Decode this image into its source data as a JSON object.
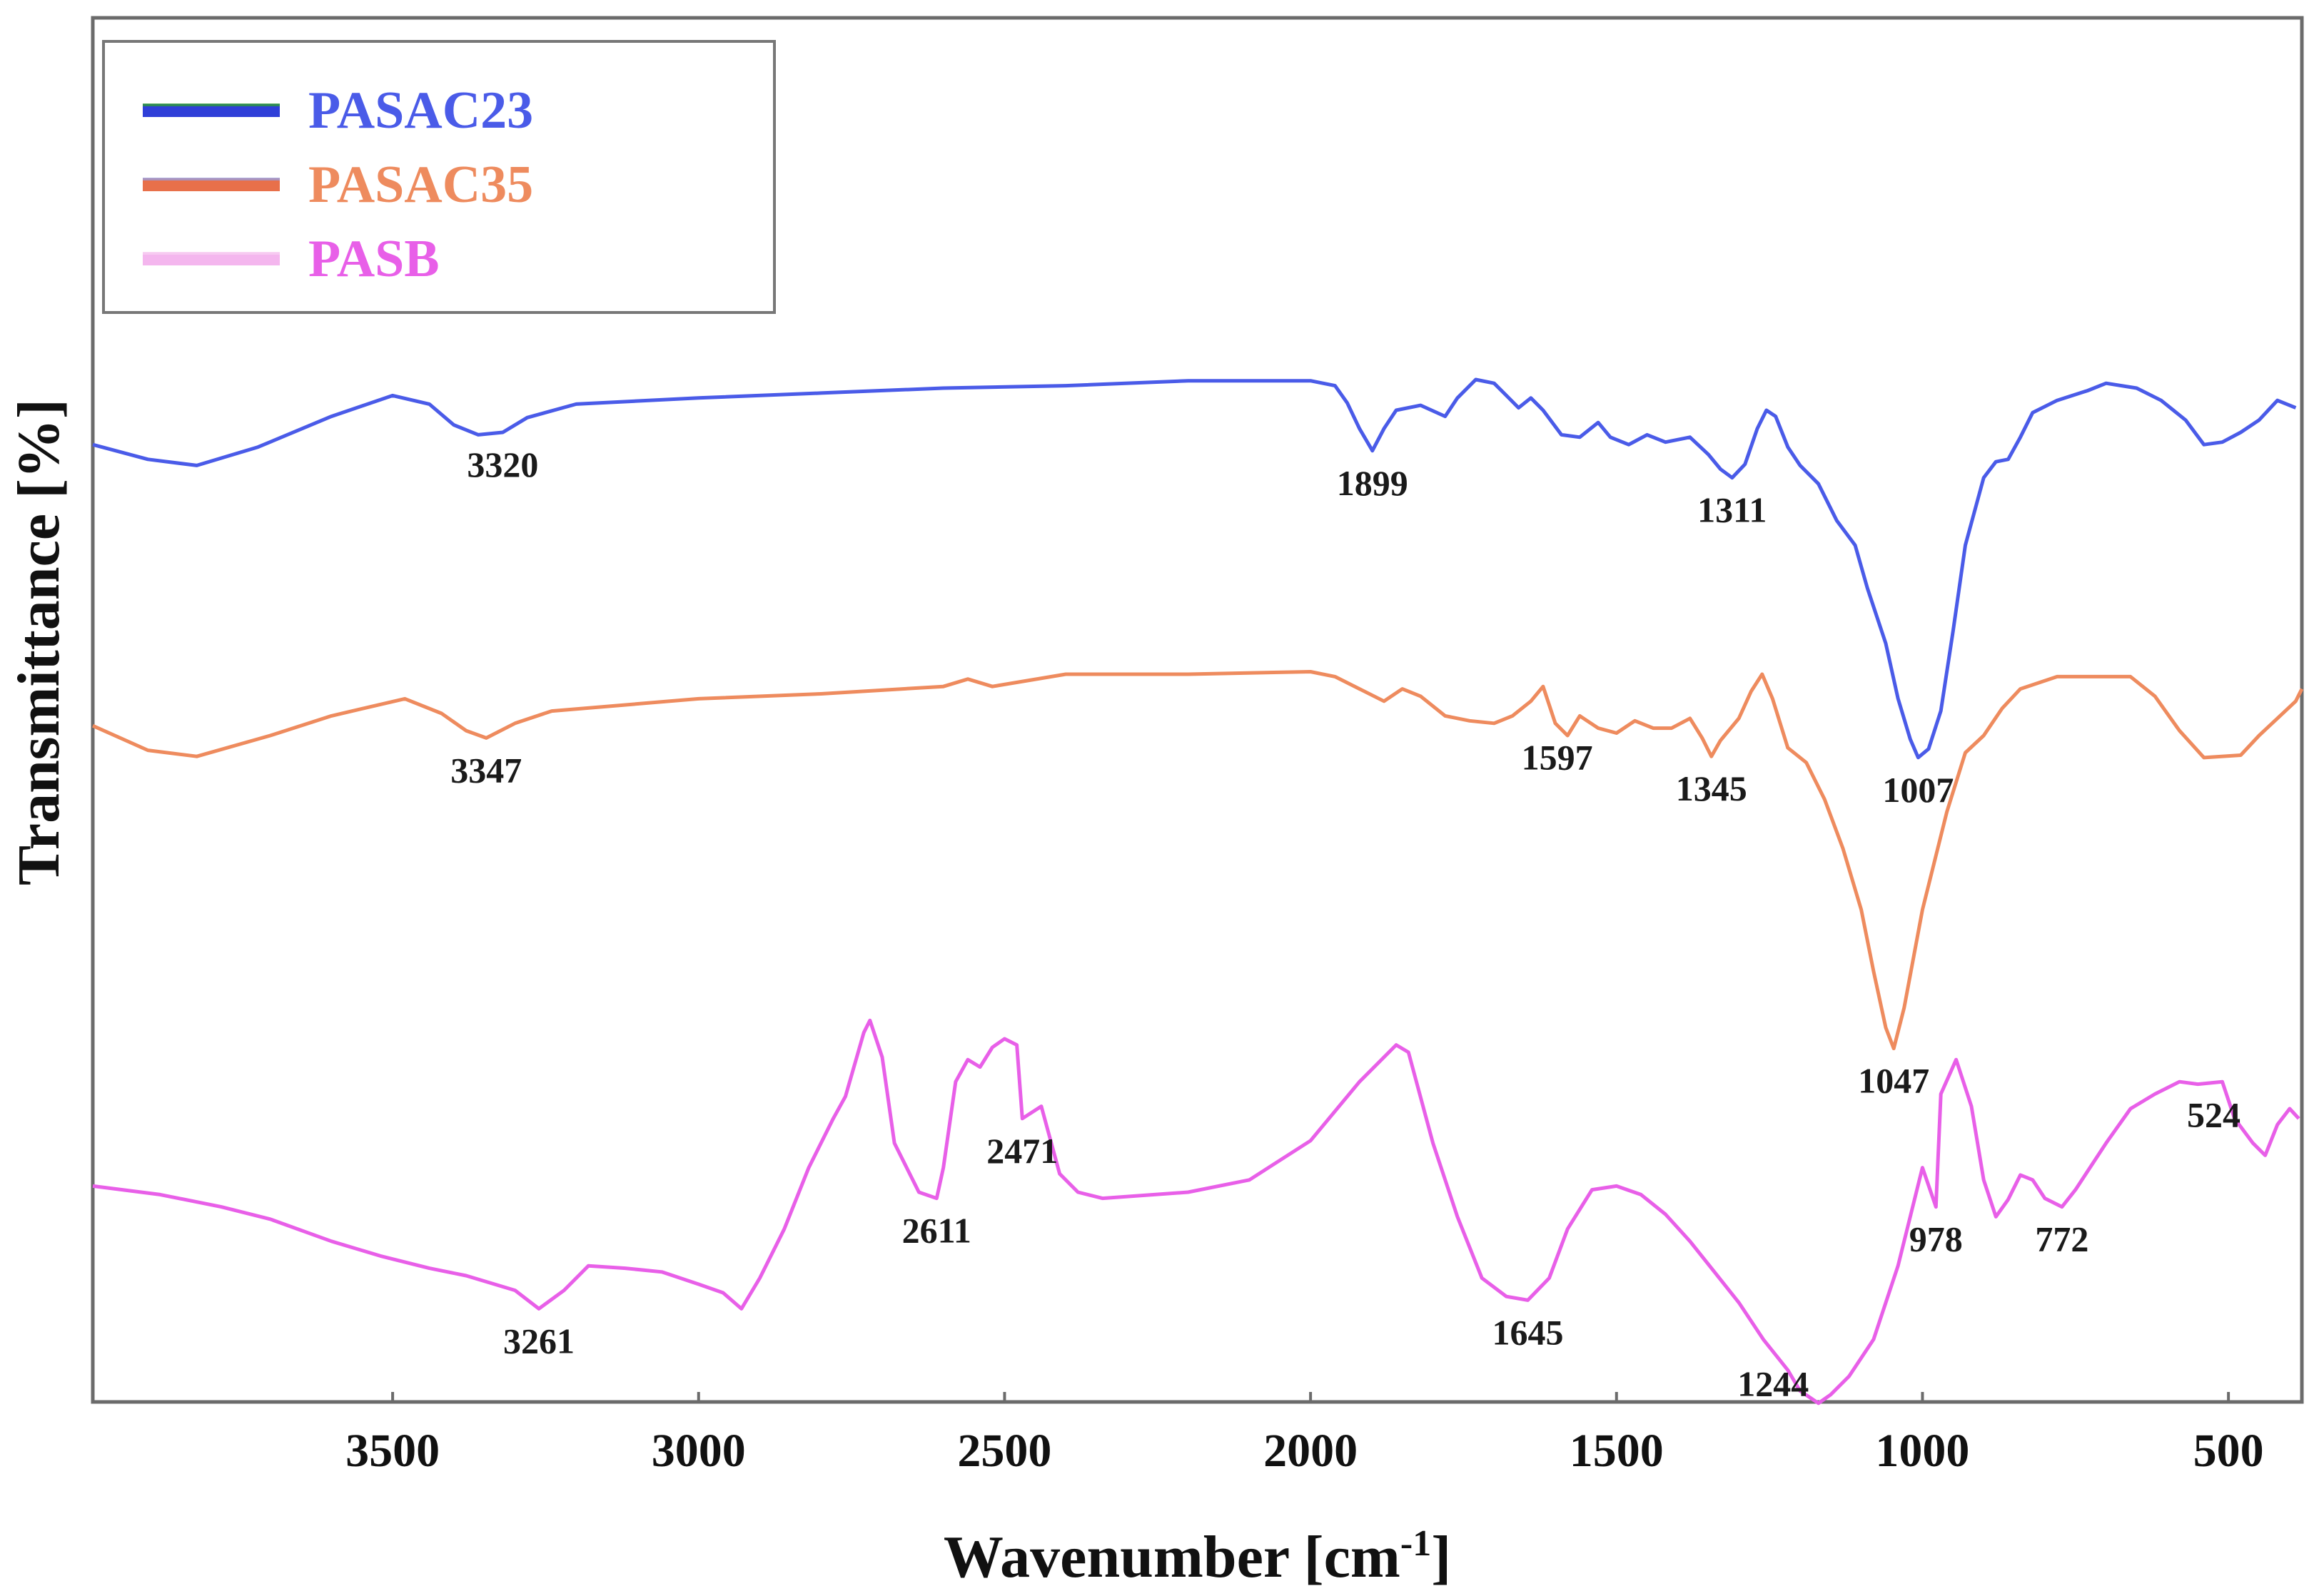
{
  "chart_data": {
    "type": "line",
    "title": "",
    "xlabel": "Wavenumber [cm",
    "xlabel_sup": "-1",
    "xlabel_tail": "]",
    "ylabel": "Transmittance [%]",
    "xlim": [
      3990,
      380
    ],
    "x_ticks": [
      3500,
      3000,
      2500,
      2000,
      1500,
      1000,
      500
    ],
    "grid": false,
    "legend_position": "top-left",
    "series": [
      {
        "name": "PASAC23",
        "color": "#4a5be8",
        "legend_color": "#2f3fd8",
        "legend_accent": "#2e9b3a",
        "offset": 0,
        "points": [
          [
            3990,
            -28
          ],
          [
            3900,
            -40
          ],
          [
            3820,
            -45
          ],
          [
            3720,
            -30
          ],
          [
            3600,
            -5
          ],
          [
            3500,
            12
          ],
          [
            3440,
            5
          ],
          [
            3400,
            -12
          ],
          [
            3360,
            -20
          ],
          [
            3320,
            -18
          ],
          [
            3280,
            -6
          ],
          [
            3200,
            5
          ],
          [
            3000,
            10
          ],
          [
            2800,
            14
          ],
          [
            2600,
            18
          ],
          [
            2400,
            20
          ],
          [
            2200,
            24
          ],
          [
            2000,
            24
          ],
          [
            1960,
            20
          ],
          [
            1940,
            6
          ],
          [
            1920,
            -15
          ],
          [
            1900,
            -32
          ],
          [
            1899,
            -33
          ],
          [
            1880,
            -15
          ],
          [
            1860,
            0
          ],
          [
            1820,
            4
          ],
          [
            1780,
            -5
          ],
          [
            1760,
            10
          ],
          [
            1730,
            25
          ],
          [
            1700,
            22
          ],
          [
            1680,
            12
          ],
          [
            1660,
            2
          ],
          [
            1640,
            10
          ],
          [
            1620,
            0
          ],
          [
            1590,
            -20
          ],
          [
            1560,
            -22
          ],
          [
            1530,
            -10
          ],
          [
            1510,
            -22
          ],
          [
            1480,
            -28
          ],
          [
            1450,
            -20
          ],
          [
            1420,
            -26
          ],
          [
            1380,
            -22
          ],
          [
            1350,
            -36
          ],
          [
            1330,
            -48
          ],
          [
            1311,
            -55
          ],
          [
            1290,
            -44
          ],
          [
            1270,
            -15
          ],
          [
            1255,
            0
          ],
          [
            1240,
            -5
          ],
          [
            1220,
            -30
          ],
          [
            1200,
            -45
          ],
          [
            1170,
            -60
          ],
          [
            1140,
            -90
          ],
          [
            1110,
            -110
          ],
          [
            1090,
            -145
          ],
          [
            1060,
            -190
          ],
          [
            1040,
            -235
          ],
          [
            1020,
            -268
          ],
          [
            1007,
            -283
          ],
          [
            990,
            -276
          ],
          [
            970,
            -245
          ],
          [
            950,
            -180
          ],
          [
            930,
            -110
          ],
          [
            900,
            -55
          ],
          [
            880,
            -42
          ],
          [
            860,
            -40
          ],
          [
            840,
            -22
          ],
          [
            820,
            -2
          ],
          [
            780,
            8
          ],
          [
            730,
            16
          ],
          [
            700,
            22
          ],
          [
            650,
            18
          ],
          [
            610,
            8
          ],
          [
            570,
            -8
          ],
          [
            540,
            -28
          ],
          [
            510,
            -26
          ],
          [
            480,
            -18
          ],
          [
            450,
            -8
          ],
          [
            420,
            8
          ],
          [
            390,
            2
          ]
        ]
      },
      {
        "name": "PASAC35",
        "color": "#ee8b5e",
        "legend_color": "#e8704a",
        "legend_accent": "#9b9bd8",
        "offset": 0,
        "points": [
          [
            3990,
            -10
          ],
          [
            3900,
            -30
          ],
          [
            3820,
            -35
          ],
          [
            3700,
            -18
          ],
          [
            3600,
            -2
          ],
          [
            3480,
            12
          ],
          [
            3420,
            0
          ],
          [
            3380,
            -14
          ],
          [
            3347,
            -20
          ],
          [
            3300,
            -8
          ],
          [
            3240,
            2
          ],
          [
            3000,
            12
          ],
          [
            2800,
            16
          ],
          [
            2600,
            22
          ],
          [
            2560,
            28
          ],
          [
            2520,
            22
          ],
          [
            2400,
            32
          ],
          [
            2200,
            32
          ],
          [
            2000,
            34
          ],
          [
            1960,
            30
          ],
          [
            1920,
            20
          ],
          [
            1880,
            10
          ],
          [
            1850,
            20
          ],
          [
            1820,
            14
          ],
          [
            1780,
            -2
          ],
          [
            1740,
            -6
          ],
          [
            1700,
            -8
          ],
          [
            1670,
            -2
          ],
          [
            1640,
            10
          ],
          [
            1620,
            22
          ],
          [
            1600,
            -8
          ],
          [
            1580,
            -18
          ],
          [
            1560,
            -2
          ],
          [
            1530,
            -12
          ],
          [
            1500,
            -16
          ],
          [
            1470,
            -6
          ],
          [
            1440,
            -12
          ],
          [
            1410,
            -12
          ],
          [
            1380,
            -4
          ],
          [
            1360,
            -20
          ],
          [
            1345,
            -35
          ],
          [
            1330,
            -22
          ],
          [
            1300,
            -4
          ],
          [
            1280,
            18
          ],
          [
            1262,
            32
          ],
          [
            1245,
            12
          ],
          [
            1220,
            -28
          ],
          [
            1190,
            -40
          ],
          [
            1160,
            -70
          ],
          [
            1130,
            -110
          ],
          [
            1100,
            -160
          ],
          [
            1080,
            -210
          ],
          [
            1060,
            -256
          ],
          [
            1047,
            -273
          ],
          [
            1030,
            -240
          ],
          [
            1000,
            -160
          ],
          [
            960,
            -80
          ],
          [
            930,
            -32
          ],
          [
            900,
            -18
          ],
          [
            870,
            4
          ],
          [
            840,
            20
          ],
          [
            780,
            30
          ],
          [
            700,
            30
          ],
          [
            660,
            30
          ],
          [
            620,
            14
          ],
          [
            580,
            -14
          ],
          [
            540,
            -36
          ],
          [
            480,
            -34
          ],
          [
            450,
            -18
          ],
          [
            420,
            -4
          ],
          [
            390,
            10
          ],
          [
            380,
            20
          ]
        ]
      },
      {
        "name": "PASB",
        "color": "#e85fe8",
        "legend_color": "#f4b6ee",
        "legend_accent": "#f8d0f2",
        "offset": 0,
        "points": [
          [
            3990,
            -45
          ],
          [
            3880,
            -52
          ],
          [
            3780,
            -62
          ],
          [
            3700,
            -72
          ],
          [
            3600,
            -90
          ],
          [
            3520,
            -102
          ],
          [
            3440,
            -112
          ],
          [
            3380,
            -118
          ],
          [
            3300,
            -130
          ],
          [
            3261,
            -145
          ],
          [
            3220,
            -130
          ],
          [
            3180,
            -110
          ],
          [
            3120,
            -112
          ],
          [
            3060,
            -115
          ],
          [
            3000,
            -125
          ],
          [
            2960,
            -132
          ],
          [
            2930,
            -145
          ],
          [
            2900,
            -120
          ],
          [
            2860,
            -80
          ],
          [
            2820,
            -30
          ],
          [
            2780,
            10
          ],
          [
            2760,
            28
          ],
          [
            2730,
            80
          ],
          [
            2720,
            90
          ],
          [
            2700,
            60
          ],
          [
            2680,
            -10
          ],
          [
            2640,
            -50
          ],
          [
            2611,
            -55
          ],
          [
            2600,
            -30
          ],
          [
            2580,
            40
          ],
          [
            2560,
            58
          ],
          [
            2540,
            52
          ],
          [
            2520,
            68
          ],
          [
            2500,
            75
          ],
          [
            2480,
            70
          ],
          [
            2440,
            20
          ],
          [
            2410,
            -35
          ],
          [
            2471,
            10
          ],
          [
            2380,
            -50
          ],
          [
            2340,
            -55
          ],
          [
            2200,
            -50
          ],
          [
            2100,
            -40
          ],
          [
            2000,
            -8
          ],
          [
            1920,
            40
          ],
          [
            1860,
            70
          ],
          [
            1840,
            64
          ],
          [
            1800,
            -10
          ],
          [
            1760,
            -70
          ],
          [
            1720,
            -120
          ],
          [
            1680,
            -135
          ],
          [
            1645,
            -138
          ],
          [
            1610,
            -120
          ],
          [
            1580,
            -80
          ],
          [
            1540,
            -48
          ],
          [
            1500,
            -45
          ],
          [
            1460,
            -52
          ],
          [
            1420,
            -68
          ],
          [
            1380,
            -90
          ],
          [
            1340,
            -115
          ],
          [
            1300,
            -140
          ],
          [
            1260,
            -170
          ],
          [
            1220,
            -195
          ],
          [
            1200,
            -212
          ],
          [
            1170,
            -222
          ],
          [
            1150,
            -215
          ],
          [
            1120,
            -200
          ],
          [
            1080,
            -170
          ],
          [
            1040,
            -110
          ],
          [
            1000,
            -30
          ],
          [
            970,
            30
          ],
          [
            945,
            58
          ],
          [
            920,
            20
          ],
          [
            900,
            -40
          ],
          [
            880,
            -70
          ],
          [
            978,
            -62
          ],
          [
            860,
            -56
          ],
          [
            840,
            -36
          ],
          [
            820,
            -40
          ],
          [
            800,
            -55
          ],
          [
            772,
            -62
          ],
          [
            750,
            -48
          ],
          [
            700,
            -10
          ],
          [
            660,
            18
          ],
          [
            620,
            30
          ],
          [
            580,
            40
          ],
          [
            550,
            38
          ],
          [
            510,
            40
          ],
          [
            490,
            10
          ],
          [
            460,
            -10
          ],
          [
            440,
            -20
          ],
          [
            420,
            5
          ],
          [
            400,
            18
          ],
          [
            385,
            10
          ]
        ]
      }
    ],
    "annotations": [
      {
        "series": "PASAC23",
        "label": "3320",
        "x": 3320
      },
      {
        "series": "PASAC23",
        "label": "1899",
        "x": 1899
      },
      {
        "series": "PASAC23",
        "label": "1311",
        "x": 1311
      },
      {
        "series": "PASAC23",
        "label": "1007",
        "x": 1007
      },
      {
        "series": "PASAC35",
        "label": "3347",
        "x": 3347
      },
      {
        "series": "PASAC35",
        "label": "1597",
        "x": 1597
      },
      {
        "series": "PASAC35",
        "label": "1345",
        "x": 1345
      },
      {
        "series": "PASAC35",
        "label": "1047",
        "x": 1047
      },
      {
        "series": "PASB",
        "label": "3261",
        "x": 3261
      },
      {
        "series": "PASB",
        "label": "2611",
        "x": 2611
      },
      {
        "series": "PASB",
        "label": "2471",
        "x": 2471
      },
      {
        "series": "PASB",
        "label": "1645",
        "x": 1645
      },
      {
        "series": "PASB",
        "label": "1244",
        "x": 1244
      },
      {
        "series": "PASB",
        "label": "978",
        "x": 978
      },
      {
        "series": "PASB",
        "label": "772",
        "x": 772
      },
      {
        "series": "PASB",
        "label": "524",
        "x": 524
      }
    ]
  }
}
